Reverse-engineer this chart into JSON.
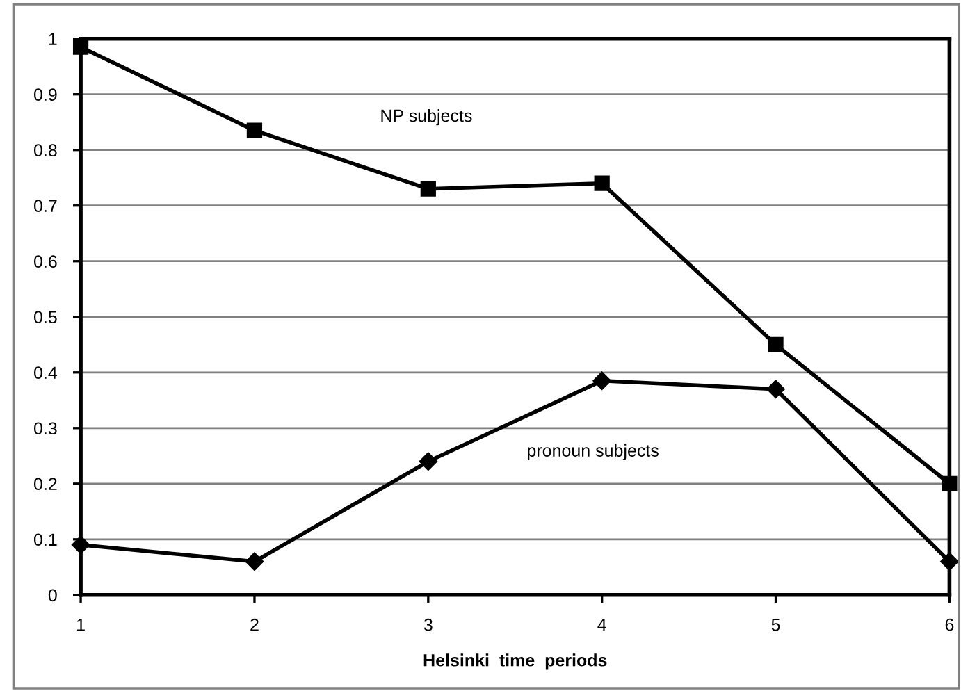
{
  "chart_data": {
    "type": "line",
    "xlabel": "Helsinki  time  periods",
    "x": [
      1,
      2,
      3,
      4,
      5,
      6
    ],
    "series": [
      {
        "name": "NP subjects",
        "color": "#000000",
        "marker": "square",
        "values": [
          0.985,
          0.835,
          0.73,
          0.74,
          0.45,
          0.2
        ]
      },
      {
        "name": "pronoun subjects",
        "color": "#000000",
        "marker": "diamond",
        "values": [
          0.09,
          0.06,
          0.24,
          0.385,
          0.37,
          0.06
        ]
      }
    ],
    "xlim": [
      1,
      6
    ],
    "xticks": [
      1,
      2,
      3,
      4,
      5,
      6
    ],
    "ylim": [
      0,
      1
    ],
    "yticks": [
      0,
      0.1,
      0.2,
      0.3,
      0.4,
      0.5,
      0.6,
      0.7,
      0.8,
      0.9,
      1
    ],
    "grid": "y",
    "legend": false,
    "line_style": "solid"
  }
}
